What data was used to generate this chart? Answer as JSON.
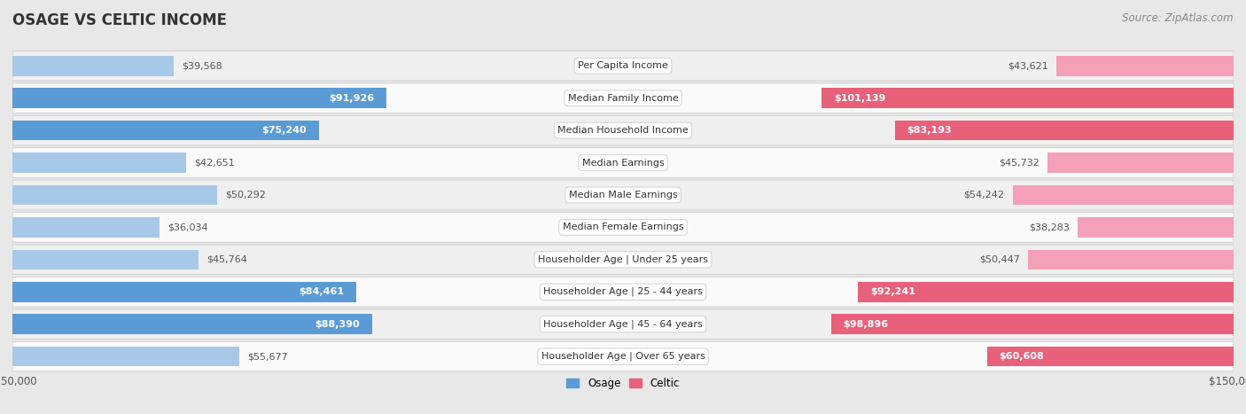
{
  "title": "OSAGE VS CELTIC INCOME",
  "source": "Source: ZipAtlas.com",
  "categories": [
    "Per Capita Income",
    "Median Family Income",
    "Median Household Income",
    "Median Earnings",
    "Median Male Earnings",
    "Median Female Earnings",
    "Householder Age | Under 25 years",
    "Householder Age | 25 - 44 years",
    "Householder Age | 45 - 64 years",
    "Householder Age | Over 65 years"
  ],
  "osage_values": [
    39568,
    91926,
    75240,
    42651,
    50292,
    36034,
    45764,
    84461,
    88390,
    55677
  ],
  "celtic_values": [
    43621,
    101139,
    83193,
    45732,
    54242,
    38283,
    50447,
    92241,
    98896,
    60608
  ],
  "osage_labels": [
    "$39,568",
    "$91,926",
    "$75,240",
    "$42,651",
    "$50,292",
    "$36,034",
    "$45,764",
    "$84,461",
    "$88,390",
    "$55,677"
  ],
  "celtic_labels": [
    "$43,621",
    "$101,139",
    "$83,193",
    "$45,732",
    "$54,242",
    "$38,283",
    "$50,447",
    "$92,241",
    "$98,896",
    "$60,608"
  ],
  "max_value": 150000,
  "osage_color_light": "#a8c8e8",
  "osage_color_strong": "#5b9bd5",
  "celtic_color_light": "#f4a0b8",
  "celtic_color_strong": "#e8607a",
  "bg_color": "#e8e8e8",
  "row_bg_even": "#f0f0f0",
  "row_bg_odd": "#fafafa",
  "label_dark": "#555555",
  "label_white": "#ffffff",
  "title_fontsize": 12,
  "source_fontsize": 8.5,
  "bar_label_fontsize": 8,
  "category_fontsize": 8,
  "axis_label_fontsize": 8.5,
  "osage_threshold": 60000,
  "celtic_threshold": 60000
}
